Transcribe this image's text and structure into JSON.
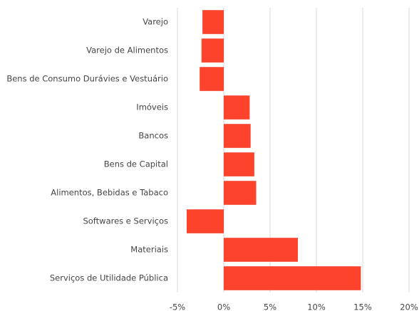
{
  "chart_data": {
    "type": "hbar",
    "categories": [
      "Varejo",
      "Varejo de Alimentos",
      "Bens de Consumo Durávies e Vestuário",
      "Imóveis",
      "Bancos",
      "Bens de Capital",
      "Alimentos, Bebidas e Tabaco",
      "Softwares e Serviços",
      "Materiais",
      "Serviços de Utilidade Pública"
    ],
    "values": [
      -2.3,
      -2.4,
      -2.6,
      2.8,
      2.9,
      3.3,
      3.5,
      -4.0,
      8.0,
      14.8
    ],
    "color": "#fd432c",
    "xlim": [
      -5,
      20
    ],
    "xticks": [
      {
        "value": -5,
        "label": "-5%"
      },
      {
        "value": 0,
        "label": "0%"
      },
      {
        "value": 5,
        "label": "5%"
      },
      {
        "value": 10,
        "label": "10%"
      },
      {
        "value": 15,
        "label": "15%"
      },
      {
        "value": 20,
        "label": "20%"
      }
    ],
    "grid": true
  }
}
